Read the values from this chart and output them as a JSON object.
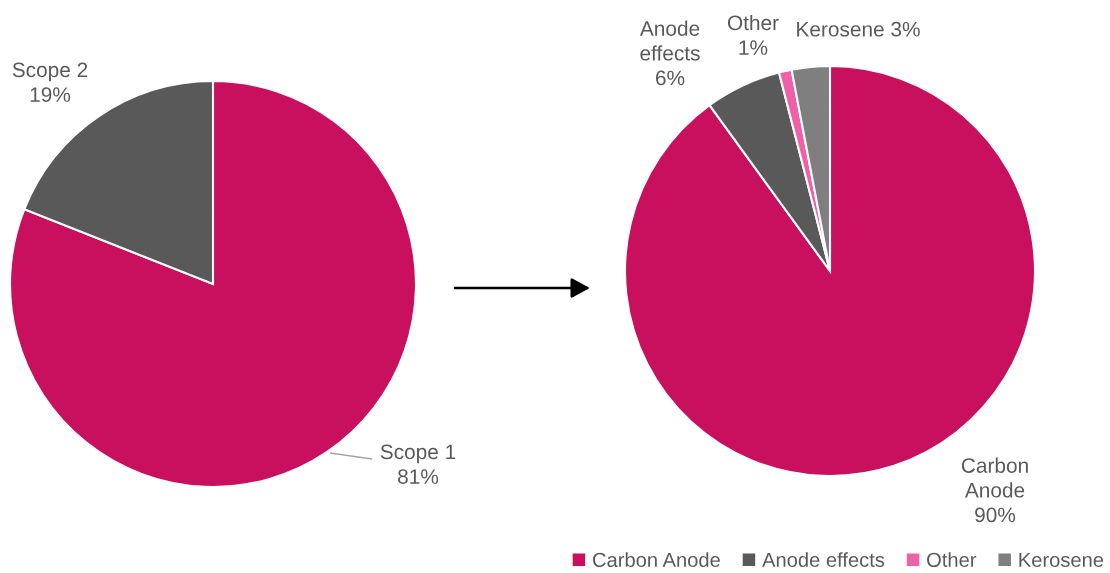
{
  "chart_data": [
    {
      "type": "pie",
      "categories": [
        "Scope 1",
        "Scope 2"
      ],
      "values": [
        81,
        19
      ],
      "colors": [
        "#c8105f",
        "#595959"
      ],
      "value_labels": [
        "81%",
        "19%"
      ],
      "legend": false
    },
    {
      "type": "pie",
      "categories": [
        "Carbon Anode",
        "Anode effects",
        "Other",
        "Kerosene"
      ],
      "values": [
        90,
        6,
        1,
        3
      ],
      "colors": [
        "#c8105f",
        "#595959",
        "#f060a8",
        "#7f7f7f"
      ],
      "value_labels": [
        "90%",
        "6%",
        "1%",
        "3%"
      ],
      "legend": "bottom"
    }
  ]
}
